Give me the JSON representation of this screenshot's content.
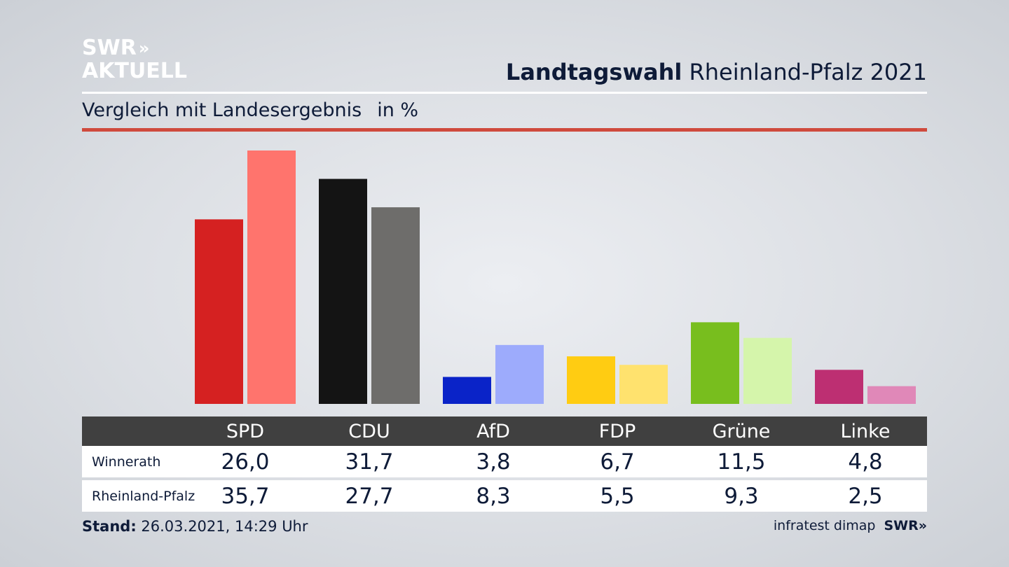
{
  "logo": {
    "line1": "SWR",
    "line1_chevrons": "»",
    "line2": "AKTUELL"
  },
  "header": {
    "title_bold": "Landtagswahl",
    "title_rest": "Rheinland-Pfalz 2021"
  },
  "subtitle": {
    "text": "Vergleich mit Landesergebnis",
    "unit": "in %"
  },
  "colors": {
    "accent_rule": "#cf4a3d",
    "table_header": "#404040",
    "text": "#0e1b38"
  },
  "chart_data": {
    "type": "bar",
    "categories": [
      "SPD",
      "CDU",
      "AfD",
      "FDP",
      "Grüne",
      "Linke"
    ],
    "series": [
      {
        "name": "Winnerath",
        "values": [
          26.0,
          31.7,
          3.8,
          6.7,
          11.5,
          4.8
        ],
        "colors": [
          "#d52121",
          "#141414",
          "#0a23c8",
          "#ffcc12",
          "#78be1e",
          "#bd2f72"
        ]
      },
      {
        "name": "Rheinland-Pfalz",
        "values": [
          35.7,
          27.7,
          8.3,
          5.5,
          9.3,
          2.5
        ],
        "colors": [
          "#ff746d",
          "#6e6d6b",
          "#9dabfc",
          "#ffe26e",
          "#d5f5ab",
          "#e088b8"
        ]
      }
    ],
    "grid": false,
    "legend": "table below chart"
  },
  "table": {
    "headers": [
      "SPD",
      "CDU",
      "AfD",
      "FDP",
      "Grüne",
      "Linke"
    ],
    "rows": [
      {
        "label": "Winnerath",
        "values": [
          "26,0",
          "31,7",
          "3,8",
          "6,7",
          "11,5",
          "4,8"
        ]
      },
      {
        "label": "Rheinland-Pfalz",
        "values": [
          "35,7",
          "27,7",
          "8,3",
          "5,5",
          "9,3",
          "2,5"
        ]
      }
    ]
  },
  "footer": {
    "stand_label": "Stand:",
    "stand_value": "26.03.2021, 14:29 Uhr",
    "source": "infratest dimap",
    "brand": "SWR»"
  }
}
